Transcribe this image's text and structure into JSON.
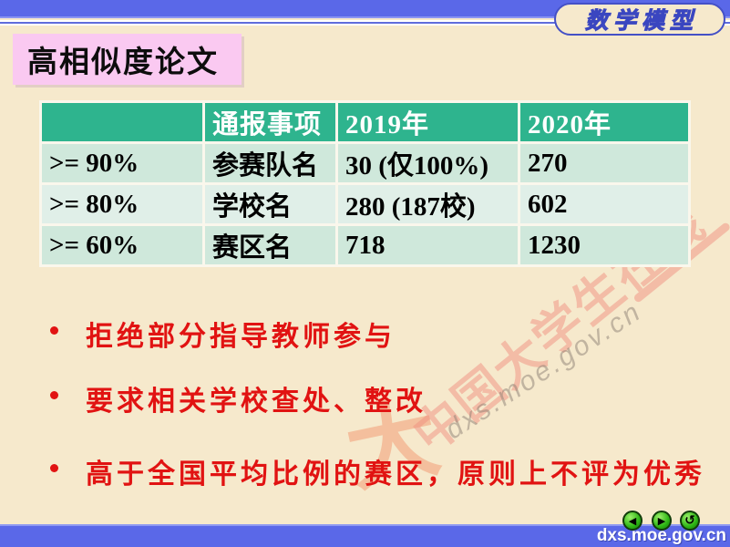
{
  "badge": {
    "label": "数学模型"
  },
  "title": {
    "text": "高相似度论文"
  },
  "table": {
    "headers": [
      "",
      "通报事项",
      "2019年",
      "2020年"
    ],
    "rows": [
      [
        ">= 90%",
        "参赛队名",
        "30 (仅100%)",
        "270"
      ],
      [
        ">= 80%",
        "学校名",
        "280 (187校)",
        "602"
      ],
      [
        ">= 60%",
        "赛区名",
        "718",
        "1230"
      ]
    ]
  },
  "bullets": [
    "拒绝部分指导教师参与",
    "要求相关学校查处、整改",
    "高于全国平均比例的赛区，原则上不评为优秀"
  ],
  "watermark": {
    "brand": "中国大学生在线",
    "url": "dxs.moe.gov.cn"
  },
  "footer": {
    "url": "dxs.moe.gov.cn"
  },
  "nav": {
    "prev_glyph": "◀",
    "next_glyph": "▶",
    "return_glyph": "↺"
  },
  "colors": {
    "bar_blue": "#5a68e8",
    "header_green": "#2eb48e",
    "row_mint": "#cfe8db",
    "row_light": "#e0efe8",
    "bullet_red": "#e11312",
    "title_pink": "#fac9f1",
    "background_cream": "#f6e9cc",
    "watermark_salmon": "#f09080",
    "button_green": "#2cb514"
  }
}
